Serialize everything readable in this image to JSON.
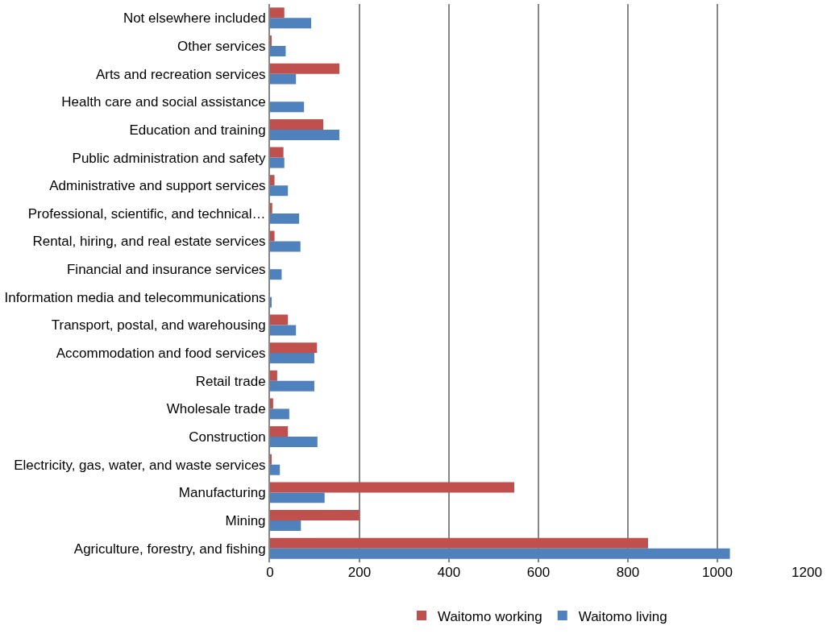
{
  "chart_data": {
    "type": "bar",
    "orientation": "horizontal",
    "categories": [
      "Not elsewhere included",
      "Other services",
      "Arts and recreation services",
      "Health care and social assistance",
      "Education and training",
      "Public administration and safety",
      "Administrative and support services",
      "Professional, scientific, and technical…",
      "Rental, hiring, and real estate services",
      "Financial and insurance services",
      "Information media and telecommunications",
      "Transport, postal, and warehousing",
      "Accommodation and food services",
      "Retail trade",
      "Wholesale trade",
      "Construction",
      "Electricity, gas, water, and waste services",
      "Manufacturing",
      "Mining",
      "Agriculture, forestry, and fishing"
    ],
    "series": [
      {
        "name": "Waitomo working",
        "color": "#c0504d",
        "values": [
          32,
          2,
          155,
          0,
          119,
          30,
          10,
          5,
          10,
          0,
          0,
          40,
          105,
          16,
          7,
          40,
          2,
          546,
          200,
          845
        ]
      },
      {
        "name": "Waitomo living",
        "color": "#4f81bd",
        "values": [
          92,
          35,
          58,
          76,
          155,
          32,
          40,
          65,
          68,
          26,
          2,
          58,
          99,
          99,
          43,
          106,
          22,
          122,
          69,
          1028
        ]
      }
    ],
    "xlim": [
      0,
      1200
    ],
    "xticks": [
      0,
      200,
      400,
      600,
      800,
      1000,
      1200
    ],
    "grid": "x",
    "legend": "bottom"
  }
}
